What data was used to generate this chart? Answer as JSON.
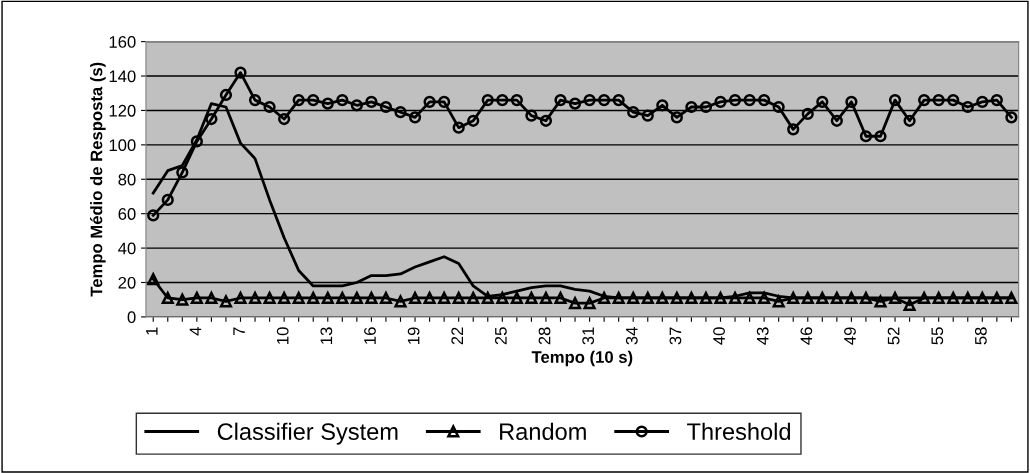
{
  "chart_data": {
    "type": "line",
    "xlabel": "Tempo (10 s)",
    "ylabel": "Tempo Médio de Resposta (s)",
    "categories": [
      "1",
      null,
      null,
      "4",
      null,
      null,
      "7",
      null,
      null,
      "10",
      null,
      null,
      "13",
      null,
      null,
      "16",
      null,
      null,
      "19",
      null,
      null,
      "22",
      null,
      null,
      "25",
      null,
      null,
      "28",
      null,
      null,
      "31",
      null,
      null,
      "34",
      null,
      null,
      "37",
      null,
      null,
      "40",
      null,
      null,
      "43",
      null,
      null,
      "46",
      null,
      null,
      "49",
      null,
      null,
      "52",
      null,
      null,
      "55",
      null,
      null,
      "58",
      null,
      null
    ],
    "series": [
      {
        "name": "Classifier System",
        "color": "#000000",
        "marker": "none",
        "values": [
          72,
          85,
          88,
          103,
          124,
          122,
          101,
          92,
          68,
          46,
          27,
          18,
          18,
          18,
          20,
          24,
          24,
          25,
          29,
          32,
          35,
          31,
          18,
          12,
          13,
          15,
          17,
          18,
          18,
          16,
          15,
          12,
          11,
          11,
          11,
          11,
          11,
          11,
          11,
          11,
          12,
          14,
          14,
          12,
          11,
          11,
          11,
          11,
          11,
          11,
          11,
          11,
          11,
          11,
          11,
          11,
          11,
          11,
          11,
          11
        ]
      },
      {
        "name": "Random",
        "color": "#000000",
        "marker": "triangle",
        "values": [
          22,
          11,
          10,
          11,
          11,
          9,
          11,
          11,
          11,
          11,
          11,
          11,
          11,
          11,
          11,
          11,
          11,
          9,
          11,
          11,
          11,
          11,
          11,
          11,
          11,
          11,
          11,
          11,
          11,
          8,
          8,
          11,
          11,
          11,
          11,
          11,
          11,
          11,
          11,
          11,
          11,
          11,
          11,
          9,
          11,
          11,
          11,
          11,
          11,
          11,
          9,
          11,
          7,
          11,
          11,
          11,
          11,
          11,
          11,
          11
        ]
      },
      {
        "name": "Threshold",
        "color": "#000000",
        "marker": "circle",
        "values": [
          59,
          68,
          84,
          102,
          115,
          129,
          142,
          126,
          122,
          115,
          126,
          126,
          124,
          126,
          123,
          125,
          122,
          119,
          116,
          125,
          125,
          110,
          114,
          126,
          126,
          126,
          117,
          114,
          126,
          124,
          126,
          126,
          126,
          119,
          117,
          123,
          116,
          122,
          122,
          125,
          126,
          126,
          126,
          122,
          109,
          118,
          125,
          114,
          125,
          105,
          105,
          126,
          114,
          126,
          126,
          126,
          122,
          125,
          126,
          116
        ]
      }
    ],
    "ylim": [
      0,
      160
    ],
    "yticks": [
      0,
      20,
      40,
      60,
      80,
      100,
      120,
      140,
      160
    ],
    "grid": "y",
    "legend": "bottom",
    "line_style": "solid"
  }
}
